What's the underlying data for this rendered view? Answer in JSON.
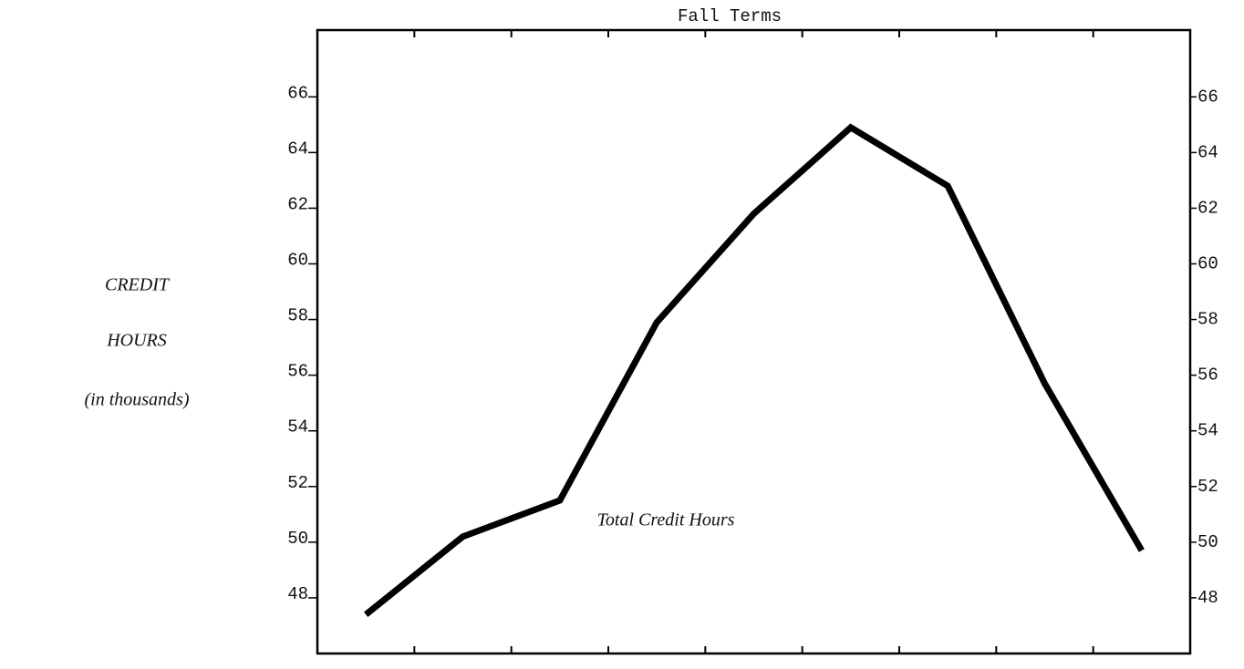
{
  "chart_data": {
    "type": "line",
    "title": "Fall Terms",
    "ylabel": [
      "CREDIT",
      "HOURS",
      "(in thousands)"
    ],
    "annotation": "Total Credit Hours",
    "categories": [
      null,
      null,
      null,
      null,
      null,
      null,
      null,
      null,
      null
    ],
    "series": [
      {
        "name": "Total Credit Hours",
        "color": "#000000",
        "values": [
          47.4,
          50.2,
          51.5,
          57.9,
          61.8,
          64.9,
          62.8,
          55.7,
          49.7
        ]
      }
    ],
    "ylim": [
      46,
      68.4
    ],
    "yticks": [
      48,
      50,
      52,
      54,
      56,
      58,
      60,
      62,
      64,
      66
    ],
    "y2lim": [
      46,
      68.4
    ],
    "y2ticks": [
      48,
      50,
      52,
      54,
      56,
      58,
      60,
      62,
      64,
      66
    ],
    "grid": false
  }
}
